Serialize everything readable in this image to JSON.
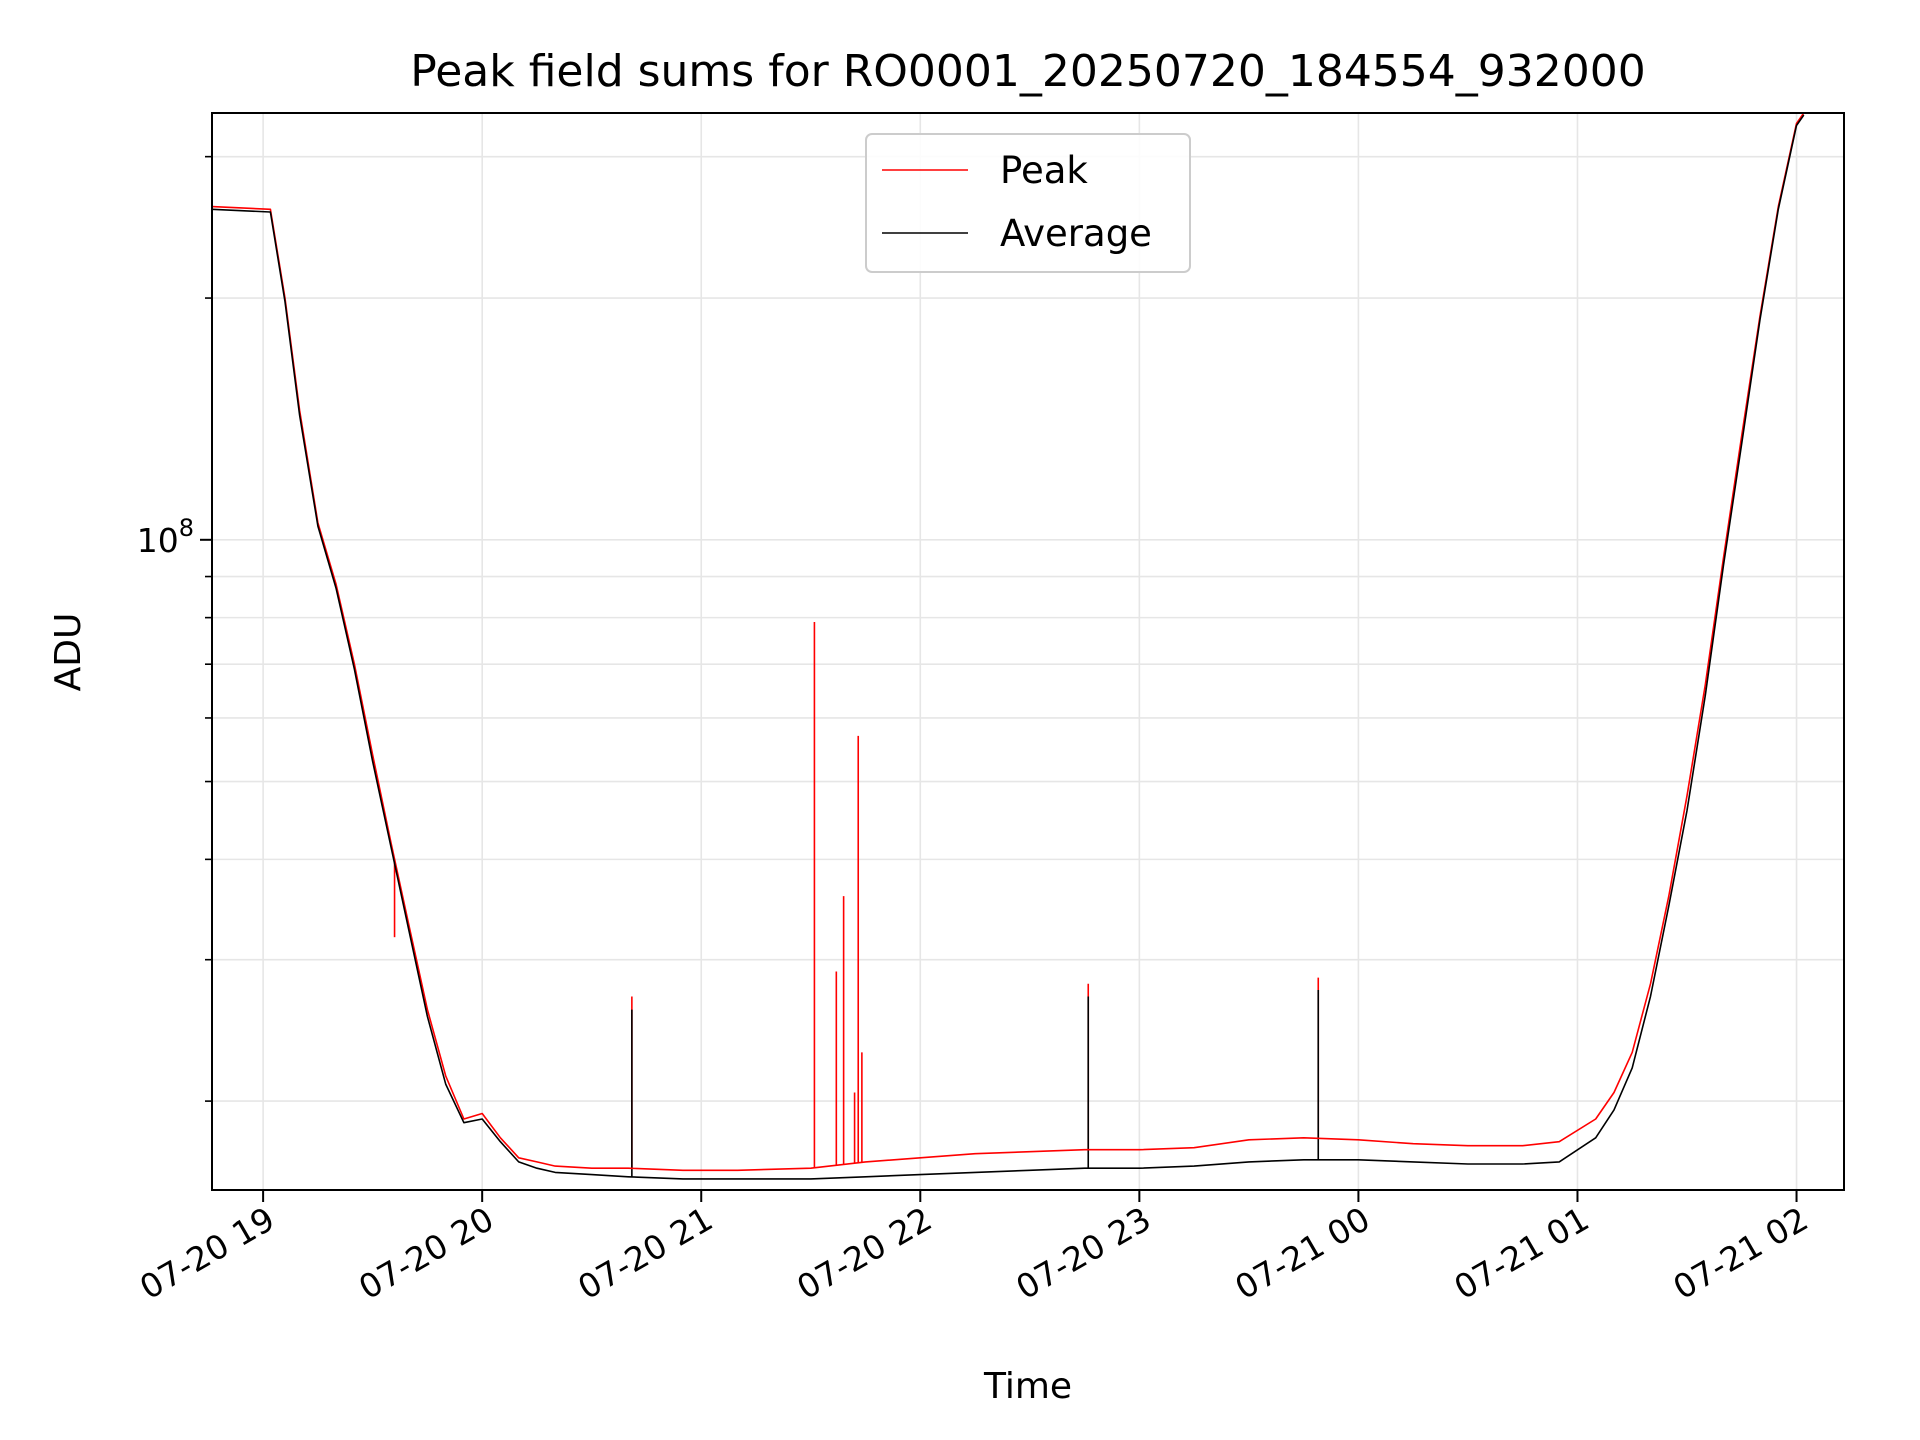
{
  "chart_data": {
    "type": "line",
    "title": "Peak field sums for RO0001_20250720_184554_932000",
    "xlabel": "Time",
    "ylabel": "ADU",
    "yscale": "log",
    "ylim": [
      15500000,
      340000000
    ],
    "xlim": [
      "07-20 18:46",
      "07-21 02:13"
    ],
    "xticks": [
      {
        "t": "07-20 19:00",
        "label": "07-20 19"
      },
      {
        "t": "07-20 20:00",
        "label": "07-20 20"
      },
      {
        "t": "07-20 21:00",
        "label": "07-20 21"
      },
      {
        "t": "07-20 22:00",
        "label": "07-20 22"
      },
      {
        "t": "07-20 23:00",
        "label": "07-20 23"
      },
      {
        "t": "07-21 00:00",
        "label": "07-21 00"
      },
      {
        "t": "07-21 01:00",
        "label": "07-21 01"
      },
      {
        "t": "07-21 02:00",
        "label": "07-21 02"
      }
    ],
    "yticks": [
      {
        "value": 100000000,
        "label_base": "10",
        "label_exp": "8"
      }
    ],
    "y_minor_ticks": [
      20000000,
      30000000,
      40000000,
      50000000,
      60000000,
      70000000,
      80000000,
      90000000,
      200000000,
      300000000
    ],
    "grid": true,
    "legend_position": "upper center",
    "colors": {
      "peak": "#ff0000",
      "average": "#000000",
      "grid": "#e6e6e6"
    },
    "series": [
      {
        "name": "Peak",
        "color": "#ff0000",
        "x": [
          "07-20 18:46",
          "07-20 19:02",
          "07-20 19:06",
          "07-20 19:10",
          "07-20 19:15",
          "07-20 19:20",
          "07-20 19:25",
          "07-20 19:30",
          "07-20 19:35",
          "07-20 19:40",
          "07-20 19:45",
          "07-20 19:50",
          "07-20 19:55",
          "07-20 20:00",
          "07-20 20:05",
          "07-20 20:10",
          "07-20 20:15",
          "07-20 20:20",
          "07-20 20:30",
          "07-20 20:40",
          "07-20 20:55",
          "07-20 21:10",
          "07-20 21:30",
          "07-20 21:45",
          "07-20 22:00",
          "07-20 22:15",
          "07-20 22:30",
          "07-20 22:45",
          "07-20 23:00",
          "07-20 23:15",
          "07-20 23:30",
          "07-20 23:45",
          "07-21 00:00",
          "07-21 00:15",
          "07-21 00:30",
          "07-21 00:45",
          "07-21 00:55",
          "07-21 01:05",
          "07-21 01:10",
          "07-21 01:15",
          "07-21 01:20",
          "07-21 01:25",
          "07-21 01:30",
          "07-21 01:35",
          "07-21 01:40",
          "07-21 01:45",
          "07-21 01:50",
          "07-21 01:55",
          "07-21 02:00",
          "07-21 02:02"
        ],
        "y": [
          260000000,
          258000000,
          200000000,
          145000000,
          105000000,
          88000000,
          70000000,
          54000000,
          42000000,
          33000000,
          26000000,
          21500000,
          19000000,
          19300000,
          18000000,
          17000000,
          16800000,
          16600000,
          16500000,
          16500000,
          16400000,
          16400000,
          16500000,
          16800000,
          17000000,
          17200000,
          17300000,
          17400000,
          17400000,
          17500000,
          17900000,
          18000000,
          17900000,
          17700000,
          17600000,
          17600000,
          17800000,
          19000000,
          20500000,
          23000000,
          28000000,
          36000000,
          48000000,
          66000000,
          95000000,
          135000000,
          190000000,
          260000000,
          330000000,
          340000000
        ]
      },
      {
        "name": "Average",
        "color": "#000000",
        "x": [
          "07-20 18:46",
          "07-20 19:02",
          "07-20 19:06",
          "07-20 19:10",
          "07-20 19:15",
          "07-20 19:20",
          "07-20 19:25",
          "07-20 19:30",
          "07-20 19:35",
          "07-20 19:40",
          "07-20 19:45",
          "07-20 19:50",
          "07-20 19:55",
          "07-20 20:00",
          "07-20 20:05",
          "07-20 20:10",
          "07-20 20:15",
          "07-20 20:20",
          "07-20 20:30",
          "07-20 20:40",
          "07-20 20:55",
          "07-20 21:10",
          "07-20 21:30",
          "07-20 21:45",
          "07-20 22:00",
          "07-20 22:15",
          "07-20 22:30",
          "07-20 22:45",
          "07-20 23:00",
          "07-20 23:15",
          "07-20 23:30",
          "07-20 23:45",
          "07-21 00:00",
          "07-21 00:15",
          "07-21 00:30",
          "07-21 00:45",
          "07-21 00:55",
          "07-21 01:05",
          "07-21 01:10",
          "07-21 01:15",
          "07-21 01:20",
          "07-21 01:25",
          "07-21 01:30",
          "07-21 01:35",
          "07-21 01:40",
          "07-21 01:45",
          "07-21 01:50",
          "07-21 01:55",
          "07-21 02:00",
          "07-21 02:02"
        ],
        "y": [
          258000000,
          256000000,
          198000000,
          143000000,
          104000000,
          87000000,
          69000000,
          53000000,
          41500000,
          32500000,
          25500000,
          21000000,
          18800000,
          19000000,
          17800000,
          16800000,
          16500000,
          16300000,
          16200000,
          16100000,
          16000000,
          16000000,
          16000000,
          16100000,
          16200000,
          16300000,
          16400000,
          16500000,
          16500000,
          16600000,
          16800000,
          16900000,
          16900000,
          16800000,
          16700000,
          16700000,
          16800000,
          18000000,
          19500000,
          22000000,
          27000000,
          35000000,
          46000000,
          64000000,
          93000000,
          132000000,
          188000000,
          258000000,
          328000000,
          338000000
        ]
      }
    ],
    "spikes": [
      {
        "series": "Peak",
        "x": "07-20 19:36",
        "y": 32000000
      },
      {
        "series": "Peak",
        "x": "07-20 20:41",
        "y": 27000000
      },
      {
        "series": "Average",
        "x": "07-20 20:41",
        "y": 26000000
      },
      {
        "series": "Peak",
        "x": "07-20 21:31",
        "y": 79000000
      },
      {
        "series": "Peak",
        "x": "07-20 21:37",
        "y": 29000000
      },
      {
        "series": "Peak",
        "x": "07-20 21:39",
        "y": 36000000
      },
      {
        "series": "Peak",
        "x": "07-20 21:42",
        "y": 20500000
      },
      {
        "series": "Peak",
        "x": "07-20 21:43",
        "y": 57000000
      },
      {
        "series": "Peak",
        "x": "07-20 21:44",
        "y": 23000000
      },
      {
        "series": "Peak",
        "x": "07-20 22:46",
        "y": 28000000
      },
      {
        "series": "Average",
        "x": "07-20 22:46",
        "y": 27000000
      },
      {
        "series": "Peak",
        "x": "07-20 23:49",
        "y": 28500000
      },
      {
        "series": "Average",
        "x": "07-20 23:49",
        "y": 27500000
      }
    ]
  }
}
